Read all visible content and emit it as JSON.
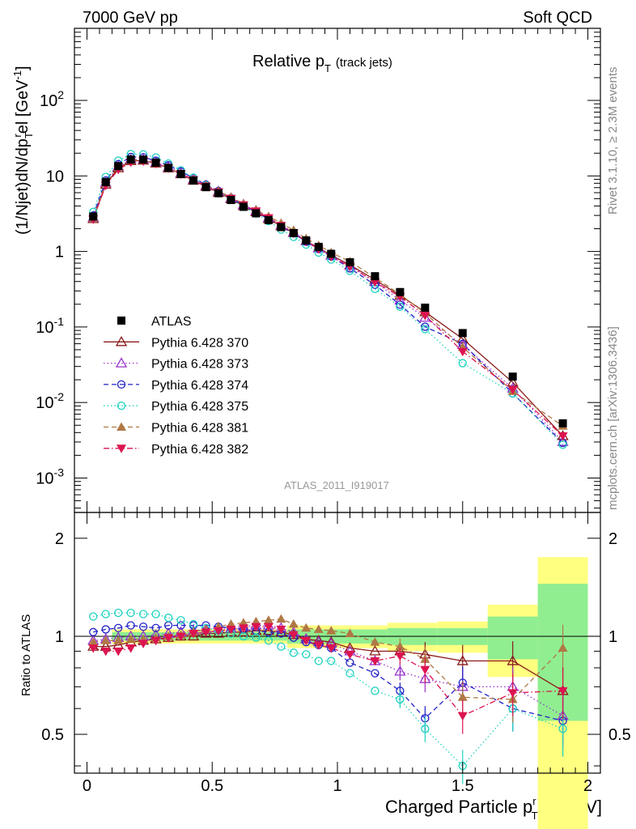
{
  "header": {
    "left": "7000 GeV pp",
    "right": "Soft QCD"
  },
  "side_text": {
    "rivet": "Rivet 3.1.10, ≥ 2.3M events",
    "mcplots": "mcplots.cern.ch [arXiv:1306.3436]"
  },
  "top_panel": {
    "title_main": "Relative p",
    "title_sub": "T",
    "title_extra": "(track jets)",
    "ylabel": "(1/Njet)dN/dp",
    "ylabel_sup": "r",
    "ylabel_sub": "T",
    "ylabel_tail": "el [GeV",
    "ylabel_exp": "-1",
    "ylabel_close": "]",
    "watermark": "ATLAS_2011_I919017",
    "yticks": [
      {
        "base": "10",
        "exp": "-3",
        "v": 0.001
      },
      {
        "base": "10",
        "exp": "-2",
        "v": 0.01
      },
      {
        "base": "10",
        "exp": "-1",
        "v": 0.1
      },
      {
        "base": "1",
        "exp": "",
        "v": 1
      },
      {
        "base": "10",
        "exp": "",
        "v": 10
      },
      {
        "base": "10",
        "exp": "2",
        "v": 100
      }
    ]
  },
  "ratio_panel": {
    "ylabel": "Ratio to ATLAS",
    "yticks": [
      "0.5",
      "1",
      "2"
    ]
  },
  "xaxis": {
    "label_pre": "Charged Particle p",
    "label_sup": "r",
    "label_sub": "T",
    "label_post": "el [GeV]",
    "ticks": [
      "0",
      "0.5",
      "1",
      "1.5",
      "2"
    ]
  },
  "legend": [
    {
      "name": "ATLAS",
      "color": "#000000",
      "marker": "square-filled",
      "dash": ""
    },
    {
      "name": "Pythia 6.428 370",
      "color": "#8b1a1a",
      "marker": "triangle-open",
      "dash": ""
    },
    {
      "name": "Pythia 6.428 373",
      "color": "#9932cc",
      "marker": "triangle-open",
      "dash": "1.5,3"
    },
    {
      "name": "Pythia 6.428 374",
      "color": "#2020c8",
      "marker": "circle-open",
      "dash": "6,4"
    },
    {
      "name": "Pythia 6.428 375",
      "color": "#20d2c0",
      "marker": "circle-open",
      "dash": "1.5,3"
    },
    {
      "name": "Pythia 6.428 381",
      "color": "#b07845",
      "marker": "triangle-filled",
      "dash": "6,4"
    },
    {
      "name": "Pythia 6.428 382",
      "color": "#dc1450",
      "marker": "triangle-down-filled",
      "dash": "7,3,1.5,3"
    }
  ],
  "chart_data": {
    "type": "scatter",
    "xlim": [
      -0.05,
      2.05
    ],
    "ylim_top": [
      0.00035,
      900
    ],
    "ylog_top": true,
    "ylim_ratio": [
      0.38,
      2.4
    ],
    "ylog_ratio": true,
    "grid": false,
    "legend_position": "left, lower half of main panel",
    "x": [
      0.025,
      0.075,
      0.125,
      0.175,
      0.225,
      0.275,
      0.325,
      0.375,
      0.425,
      0.475,
      0.525,
      0.575,
      0.625,
      0.675,
      0.725,
      0.775,
      0.825,
      0.875,
      0.925,
      0.975,
      1.05,
      1.15,
      1.25,
      1.35,
      1.5,
      1.7,
      1.9
    ],
    "data_values": [
      2.9,
      8.3,
      13.5,
      16.5,
      16.5,
      15.0,
      12.8,
      10.6,
      8.7,
      7.1,
      5.9,
      4.8,
      3.9,
      3.2,
      2.6,
      2.1,
      1.75,
      1.4,
      1.15,
      0.93,
      0.72,
      0.47,
      0.29,
      0.18,
      0.083,
      0.022,
      0.0053
    ],
    "band_bins": [
      {
        "x0": 0.1,
        "x1": 0.8,
        "stat": 0.03,
        "total": 0.05
      },
      {
        "x0": 0.8,
        "x1": 1.0,
        "stat": 0.05,
        "total": 0.08
      },
      {
        "x0": 1.0,
        "x1": 1.2,
        "stat": 0.05,
        "total": 0.08
      },
      {
        "x0": 1.2,
        "x1": 1.4,
        "stat": 0.06,
        "total": 0.1
      },
      {
        "x0": 1.4,
        "x1": 1.6,
        "stat": 0.06,
        "total": 0.11
      },
      {
        "x0": 1.6,
        "x1": 1.8,
        "stat": 0.15,
        "total": 0.25
      },
      {
        "x0": 1.8,
        "x1": 2.0,
        "stat": 0.45,
        "total": 0.75
      }
    ],
    "series": [
      {
        "name": "Pythia 6.428 370",
        "ratio": [
          0.93,
          0.93,
          0.94,
          0.96,
          0.97,
          0.98,
          0.99,
          1.0,
          1.0,
          1.02,
          1.02,
          1.03,
          1.03,
          1.04,
          1.04,
          1.03,
          1.01,
          0.98,
          0.97,
          0.96,
          0.92,
          0.9,
          0.9,
          0.88,
          0.84,
          0.84,
          0.68
        ]
      },
      {
        "name": "Pythia 6.428 373",
        "ratio": [
          0.97,
          0.98,
          0.99,
          1.0,
          1.0,
          1.01,
          1.02,
          1.03,
          1.04,
          1.05,
          1.06,
          1.06,
          1.07,
          1.08,
          1.08,
          1.06,
          1.03,
          0.98,
          0.96,
          0.95,
          0.9,
          0.84,
          0.78,
          0.74,
          0.7,
          0.7,
          0.57
        ]
      },
      {
        "name": "Pythia 6.428 374",
        "ratio": [
          1.03,
          1.05,
          1.06,
          1.08,
          1.07,
          1.06,
          1.08,
          1.08,
          1.08,
          1.08,
          1.07,
          1.06,
          1.05,
          1.04,
          1.03,
          1.02,
          0.99,
          0.96,
          0.94,
          0.92,
          0.83,
          0.77,
          0.68,
          0.56,
          0.72,
          0.6,
          0.55
        ]
      },
      {
        "name": "Pythia 6.428 375",
        "ratio": [
          1.15,
          1.17,
          1.18,
          1.18,
          1.17,
          1.17,
          1.14,
          1.12,
          1.09,
          1.06,
          1.04,
          1.02,
          1.0,
          0.99,
          0.97,
          0.93,
          0.89,
          0.88,
          0.84,
          0.84,
          0.77,
          0.68,
          0.64,
          0.52,
          0.4,
          0.6,
          0.52
        ]
      },
      {
        "name": "Pythia 6.428 381",
        "ratio": [
          0.96,
          0.97,
          0.97,
          0.98,
          0.98,
          0.99,
          1.0,
          1.01,
          1.03,
          1.05,
          1.07,
          1.09,
          1.1,
          1.11,
          1.12,
          1.13,
          1.09,
          1.06,
          1.05,
          1.04,
          1.02,
          0.96,
          0.93,
          0.85,
          0.65,
          0.64,
          0.92
        ]
      },
      {
        "name": "Pythia 6.428 382",
        "ratio": [
          0.92,
          0.9,
          0.9,
          0.92,
          0.95,
          0.97,
          0.99,
          1.0,
          1.02,
          1.03,
          1.04,
          1.05,
          1.06,
          1.07,
          1.07,
          1.05,
          1.01,
          0.97,
          0.94,
          0.92,
          0.88,
          0.84,
          0.87,
          0.79,
          0.57,
          0.67,
          0.68
        ]
      }
    ]
  }
}
